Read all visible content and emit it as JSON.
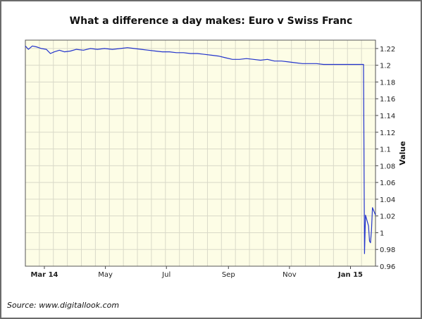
{
  "chart_data": {
    "type": "line",
    "title": "What a difference a day makes: Euro v Swiss Franc",
    "xlabel": "",
    "ylabel": "Value",
    "x_tick_labels": [
      "Mar 14",
      "May",
      "Jul",
      "Sep",
      "Nov",
      "Jan 15"
    ],
    "y_tick_labels": [
      "1.22",
      "1.2",
      "1.18",
      "1.16",
      "1.14",
      "1.12",
      "1.1",
      "1.08",
      "1.06",
      "1.04",
      "1.02",
      "1",
      "0.98",
      "0.96"
    ],
    "ylim": [
      0.96,
      1.23
    ],
    "xlim": [
      "2014-02-10",
      "2015-01-26"
    ],
    "grid": true,
    "colors": {
      "line": "#2233cc",
      "plot_background": "#fdfde6",
      "grid": "#d9d9c8"
    },
    "series": [
      {
        "points": [
          [
            "2014-02-10",
            1.223
          ],
          [
            "2014-02-13",
            1.219
          ],
          [
            "2014-02-17",
            1.223
          ],
          [
            "2014-02-21",
            1.222
          ],
          [
            "2014-02-26",
            1.22
          ],
          [
            "2014-03-03",
            1.219
          ],
          [
            "2014-03-07",
            1.214
          ],
          [
            "2014-03-11",
            1.216
          ],
          [
            "2014-03-16",
            1.218
          ],
          [
            "2014-03-21",
            1.216
          ],
          [
            "2014-03-27",
            1.217
          ],
          [
            "2014-04-02",
            1.219
          ],
          [
            "2014-04-09",
            1.218
          ],
          [
            "2014-04-16",
            1.22
          ],
          [
            "2014-04-23",
            1.219
          ],
          [
            "2014-04-30",
            1.22
          ],
          [
            "2014-05-08",
            1.219
          ],
          [
            "2014-05-16",
            1.22
          ],
          [
            "2014-05-23",
            1.221
          ],
          [
            "2014-05-30",
            1.22
          ],
          [
            "2014-06-06",
            1.219
          ],
          [
            "2014-06-13",
            1.218
          ],
          [
            "2014-06-20",
            1.217
          ],
          [
            "2014-06-27",
            1.216
          ],
          [
            "2014-07-04",
            1.216
          ],
          [
            "2014-07-11",
            1.215
          ],
          [
            "2014-07-18",
            1.215
          ],
          [
            "2014-07-25",
            1.214
          ],
          [
            "2014-08-01",
            1.214
          ],
          [
            "2014-08-08",
            1.213
          ],
          [
            "2014-08-15",
            1.212
          ],
          [
            "2014-08-22",
            1.211
          ],
          [
            "2014-08-29",
            1.209
          ],
          [
            "2014-09-05",
            1.207
          ],
          [
            "2014-09-12",
            1.207
          ],
          [
            "2014-09-19",
            1.208
          ],
          [
            "2014-09-26",
            1.207
          ],
          [
            "2014-10-03",
            1.206
          ],
          [
            "2014-10-10",
            1.207
          ],
          [
            "2014-10-17",
            1.205
          ],
          [
            "2014-10-24",
            1.205
          ],
          [
            "2014-10-31",
            1.204
          ],
          [
            "2014-11-07",
            1.203
          ],
          [
            "2014-11-14",
            1.202
          ],
          [
            "2014-11-21",
            1.202
          ],
          [
            "2014-11-28",
            1.202
          ],
          [
            "2014-12-05",
            1.201
          ],
          [
            "2014-12-12",
            1.201
          ],
          [
            "2014-12-19",
            1.201
          ],
          [
            "2014-12-26",
            1.201
          ],
          [
            "2015-01-02",
            1.201
          ],
          [
            "2015-01-09",
            1.201
          ],
          [
            "2015-01-14",
            1.201
          ],
          [
            "2015-01-15",
            0.975
          ],
          [
            "2015-01-16",
            1.021
          ],
          [
            "2015-01-19",
            1.008
          ],
          [
            "2015-01-20",
            0.99
          ],
          [
            "2015-01-21",
            0.988
          ],
          [
            "2015-01-22",
            1.003
          ],
          [
            "2015-01-23",
            1.03
          ],
          [
            "2015-01-26",
            1.021
          ]
        ]
      }
    ]
  },
  "footer": {
    "source": "Source:  www.digitallook.com"
  }
}
